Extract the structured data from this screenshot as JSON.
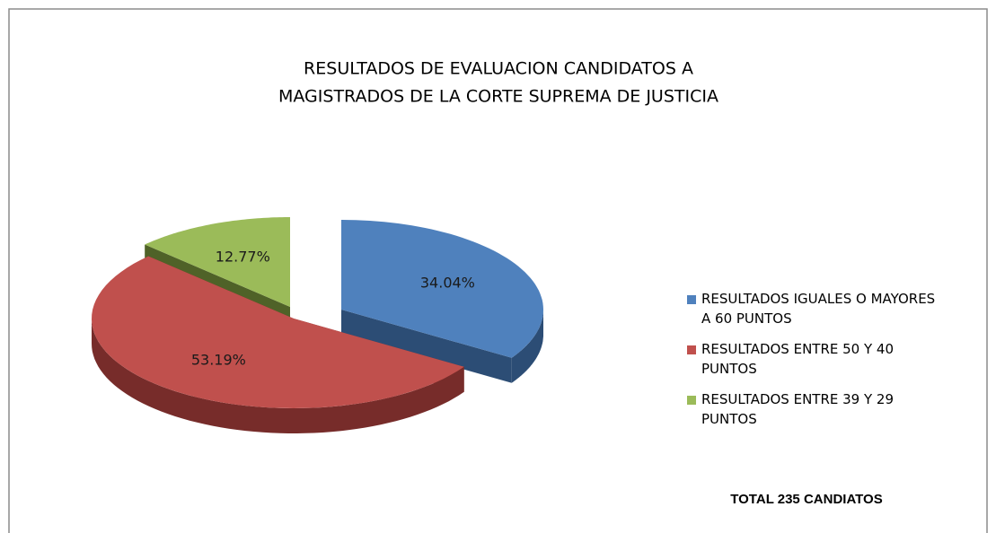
{
  "chart_data": {
    "type": "pie",
    "title": [
      "RESULTADOS DE EVALUACION CANDIDATOS A",
      "MAGISTRADOS DE LA CORTE SUPREMA DE JUSTICIA"
    ],
    "series": [
      {
        "name": "RESULTADOS IGUALES O MAYORES A 60 PUNTOS",
        "color": "#4f81bd",
        "side_color": "#2c4d75"
      },
      {
        "name": "RESULTADOS ENTRE 50 Y 40 PUNTOS",
        "color": "#c0504d",
        "side_color": "#772c2a"
      },
      {
        "name": "RESULTADOS ENTRE 39 Y 29 PUNTOS",
        "color": "#9bbb59",
        "side_color": "#4f6228"
      }
    ],
    "values": [
      34.04,
      53.19,
      12.77
    ],
    "value_labels": [
      "34.04%",
      "53.19%",
      "12.77%"
    ],
    "annotation": "TOTAL 235 CANDIATOS",
    "legend": "right"
  }
}
